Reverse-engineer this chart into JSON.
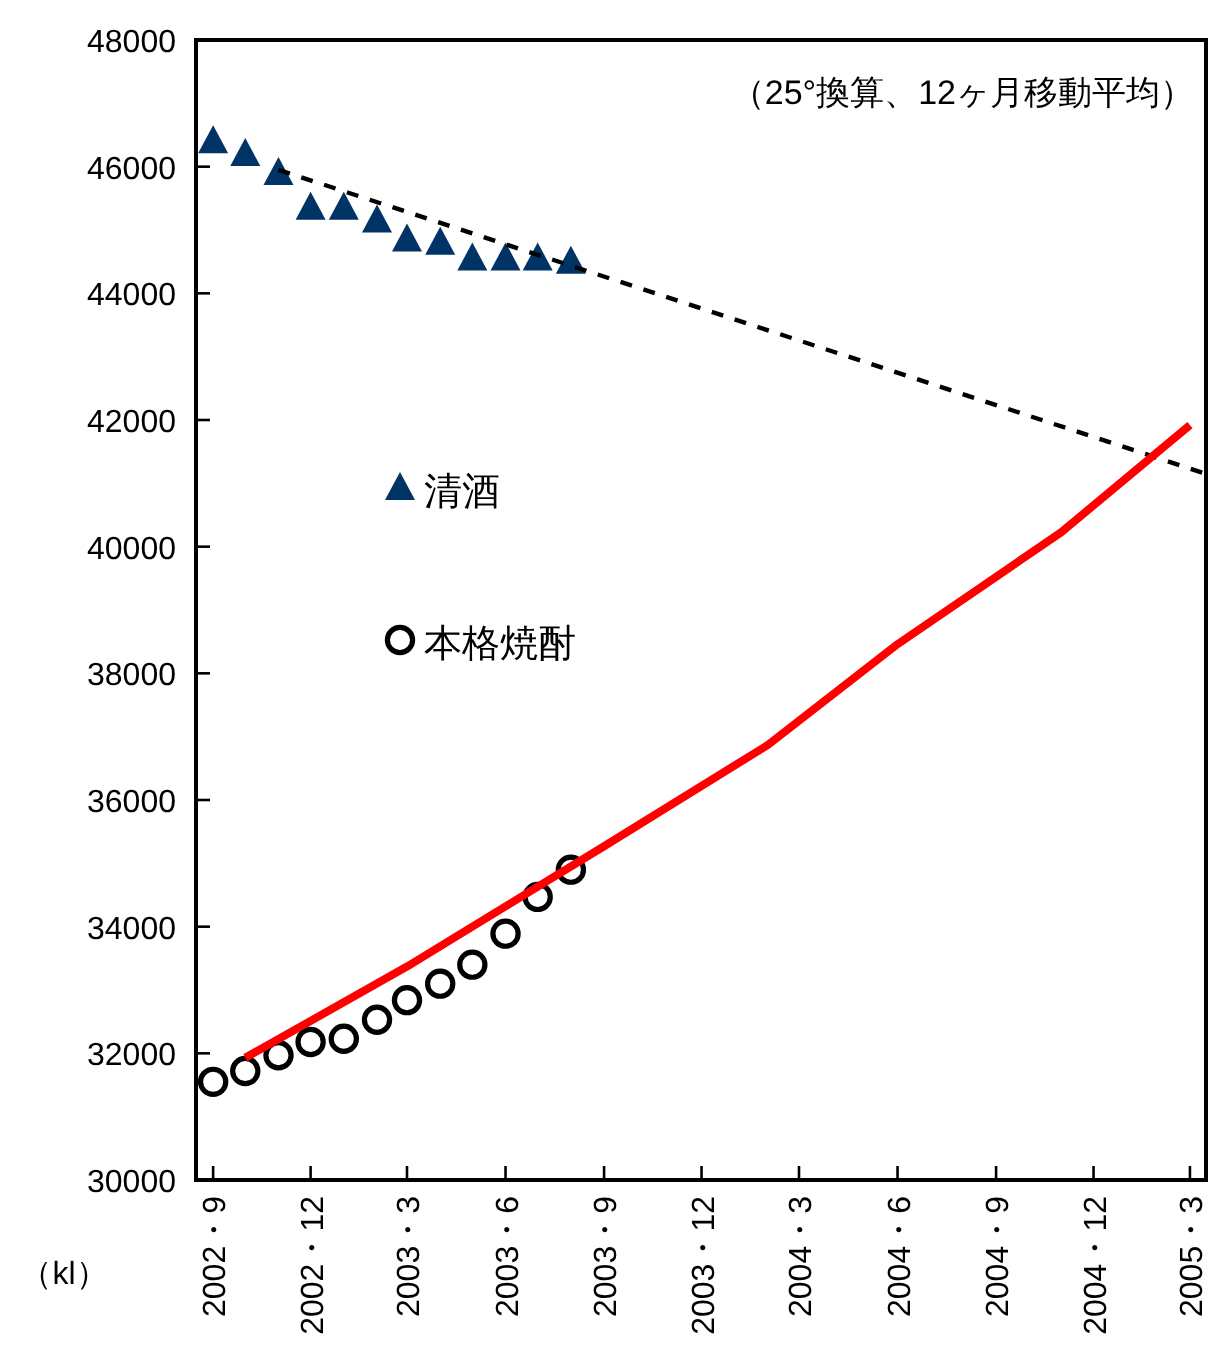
{
  "chart_data": {
    "type": "scatter",
    "ylabel": "（kl）",
    "annotations": [
      "（25°換算、12ヶ月移動平均）"
    ],
    "xlim": [
      "2002-08-16",
      "2005-03-16"
    ],
    "xticks": [
      {
        "value": "2002-09",
        "label": "2002・9"
      },
      {
        "value": "2002-12",
        "label": "2002・12"
      },
      {
        "value": "2003-03",
        "label": "2003・3"
      },
      {
        "value": "2003-06",
        "label": "2003・6"
      },
      {
        "value": "2003-09",
        "label": "2003・9"
      },
      {
        "value": "2003-12",
        "label": "2003・12"
      },
      {
        "value": "2004-03",
        "label": "2004・3"
      },
      {
        "value": "2004-06",
        "label": "2004・6"
      },
      {
        "value": "2004-09",
        "label": "2004・9"
      },
      {
        "value": "2004-12",
        "label": "2004・12"
      },
      {
        "value": "2005-03",
        "label": "2005・3"
      }
    ],
    "ylim": [
      30000,
      48000
    ],
    "yticks": [
      30000,
      32000,
      34000,
      36000,
      38000,
      40000,
      42000,
      44000,
      46000,
      48000
    ],
    "grid": false,
    "legend": "left",
    "series": [
      {
        "name": "清酒",
        "marker": "triangle",
        "color": "#003366",
        "x": [
          "2002-09",
          "2002-10",
          "2002-11",
          "2002-12",
          "2003-01",
          "2003-02",
          "2003-03",
          "2003-04",
          "2003-05",
          "2003-06",
          "2003-07",
          "2003-08"
        ],
        "values": [
          46400,
          46200,
          45900,
          45350,
          45350,
          45150,
          44850,
          44800,
          44550,
          44550,
          44550,
          44500
        ]
      },
      {
        "name": "本格焼酎",
        "marker": "circle",
        "color": "#000000",
        "x": [
          "2002-09",
          "2002-10",
          "2002-11",
          "2002-12",
          "2003-01",
          "2003-02",
          "2003-03",
          "2003-04",
          "2003-05",
          "2003-06",
          "2003-07",
          "2003-08"
        ],
        "values": [
          31550,
          31720,
          31970,
          32180,
          32230,
          32530,
          32840,
          33100,
          33400,
          33890,
          34470,
          34900
        ]
      },
      {
        "type": "line",
        "color": "#000000",
        "line_style": "dashed",
        "x": [
          "2002-11",
          "2005-03-16"
        ],
        "values": [
          45950,
          41150
        ]
      },
      {
        "type": "line",
        "color": "#ff0000",
        "line_style": "solid",
        "x": [
          "2002-10",
          "2003-03",
          "2003-09",
          "2004-02",
          "2004-06",
          "2004-11",
          "2005-03"
        ],
        "values": [
          31930,
          33370,
          35270,
          36870,
          38460,
          40230,
          41920
        ]
      }
    ]
  }
}
